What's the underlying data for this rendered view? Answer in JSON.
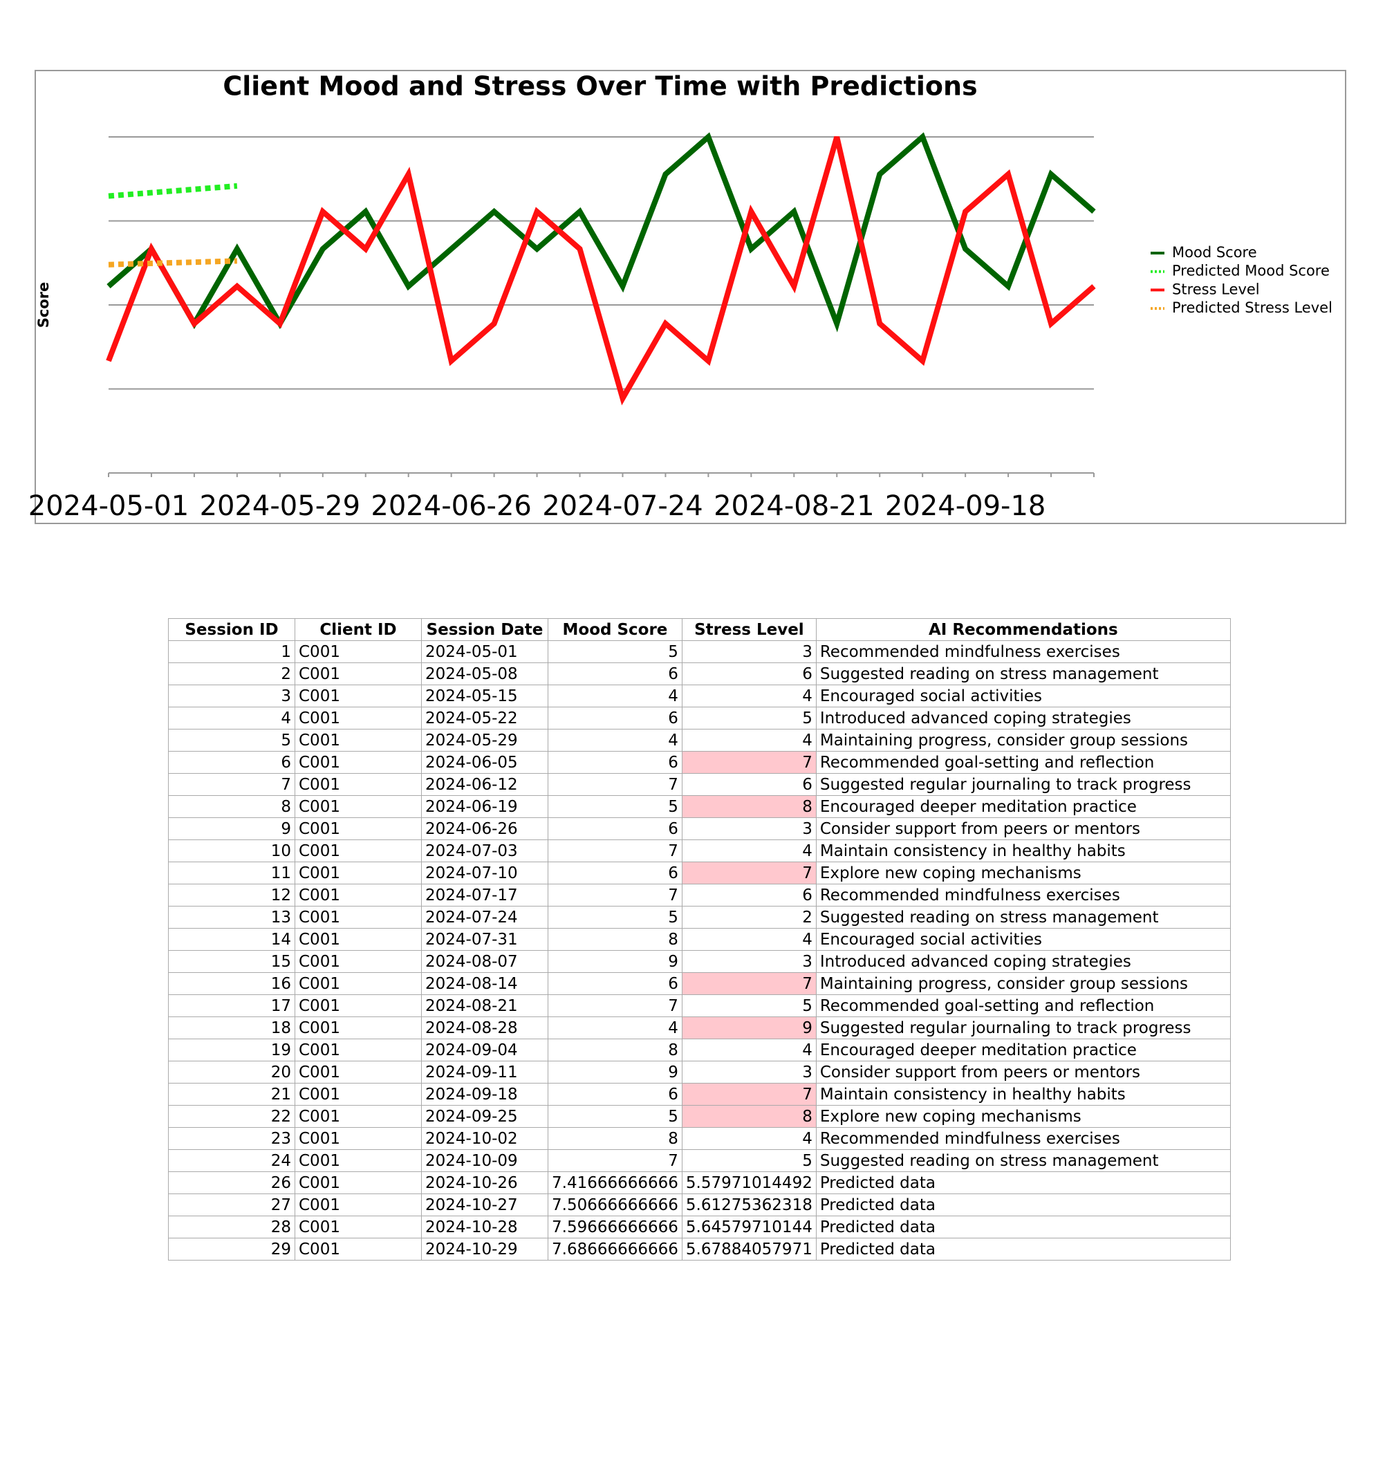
{
  "chart_data": {
    "type": "line",
    "title": "Client Mood and Stress Over Time with Predictions",
    "y_label": "Score",
    "categories": [
      "2024-05-01",
      null,
      null,
      null,
      "2024-05-29",
      null,
      null,
      null,
      "2024-06-26",
      null,
      null,
      null,
      "2024-07-24",
      null,
      null,
      null,
      "2024-08-21",
      null,
      null,
      null,
      "2024-09-18",
      null,
      null,
      null
    ],
    "ylim": [
      0,
      9
    ],
    "yticks": [
      0,
      2.25,
      4.5,
      6.75,
      9
    ],
    "grid": true,
    "legend": "right",
    "series": [
      {
        "name": "Mood Score",
        "color": "#006400",
        "dashed": false,
        "values": [
          5,
          6,
          4,
          6,
          4,
          6,
          7,
          5,
          6,
          7,
          6,
          7,
          5,
          8,
          9,
          6,
          7,
          4,
          8,
          9,
          6,
          5,
          8,
          7
        ]
      },
      {
        "name": "Predicted Mood Score",
        "color": "#22ee22",
        "dashed": true,
        "values": [
          7.4167,
          7.5067,
          7.5967,
          7.6867,
          null,
          null,
          null,
          null,
          null,
          null,
          null,
          null,
          null,
          null,
          null,
          null,
          null,
          null,
          null,
          null,
          null,
          null,
          null,
          null
        ]
      },
      {
        "name": "Stress Level",
        "color": "#ff1010",
        "dashed": false,
        "values": [
          3,
          6,
          4,
          5,
          4,
          7,
          6,
          8,
          3,
          4,
          7,
          6,
          2,
          4,
          3,
          7,
          5,
          9,
          4,
          3,
          7,
          8,
          4,
          5
        ]
      },
      {
        "name": "Predicted Stress Level",
        "color": "#f5a623",
        "dashed": true,
        "values": [
          5.5797,
          5.6128,
          5.6458,
          5.6788,
          null,
          null,
          null,
          null,
          null,
          null,
          null,
          null,
          null,
          null,
          null,
          null,
          null,
          null,
          null,
          null,
          null,
          null,
          null,
          null
        ]
      }
    ]
  },
  "table": {
    "columns": [
      "Session ID",
      "Client ID",
      "Session Date",
      "Mood Score",
      "Stress Level",
      "AI Recommendations"
    ],
    "highlight": {
      "column": 4,
      "min": 7,
      "color": "#ffc8ce"
    },
    "rows": [
      [
        "1",
        "C001",
        "2024-05-01",
        "5",
        "3",
        "Recommended mindfulness exercises"
      ],
      [
        "2",
        "C001",
        "2024-05-08",
        "6",
        "6",
        "Suggested reading on stress management"
      ],
      [
        "3",
        "C001",
        "2024-05-15",
        "4",
        "4",
        "Encouraged social activities"
      ],
      [
        "4",
        "C001",
        "2024-05-22",
        "6",
        "5",
        "Introduced advanced coping strategies"
      ],
      [
        "5",
        "C001",
        "2024-05-29",
        "4",
        "4",
        "Maintaining progress, consider group sessions"
      ],
      [
        "6",
        "C001",
        "2024-06-05",
        "6",
        "7",
        "Recommended goal-setting and reflection"
      ],
      [
        "7",
        "C001",
        "2024-06-12",
        "7",
        "6",
        "Suggested regular journaling to track progress"
      ],
      [
        "8",
        "C001",
        "2024-06-19",
        "5",
        "8",
        "Encouraged deeper meditation practice"
      ],
      [
        "9",
        "C001",
        "2024-06-26",
        "6",
        "3",
        "Consider support from peers or mentors"
      ],
      [
        "10",
        "C001",
        "2024-07-03",
        "7",
        "4",
        "Maintain consistency in healthy habits"
      ],
      [
        "11",
        "C001",
        "2024-07-10",
        "6",
        "7",
        "Explore new coping mechanisms"
      ],
      [
        "12",
        "C001",
        "2024-07-17",
        "7",
        "6",
        "Recommended mindfulness exercises"
      ],
      [
        "13",
        "C001",
        "2024-07-24",
        "5",
        "2",
        "Suggested reading on stress management"
      ],
      [
        "14",
        "C001",
        "2024-07-31",
        "8",
        "4",
        "Encouraged social activities"
      ],
      [
        "15",
        "C001",
        "2024-08-07",
        "9",
        "3",
        "Introduced advanced coping strategies"
      ],
      [
        "16",
        "C001",
        "2024-08-14",
        "6",
        "7",
        "Maintaining progress, consider group sessions"
      ],
      [
        "17",
        "C001",
        "2024-08-21",
        "7",
        "5",
        "Recommended goal-setting and reflection"
      ],
      [
        "18",
        "C001",
        "2024-08-28",
        "4",
        "9",
        "Suggested regular journaling to track progress"
      ],
      [
        "19",
        "C001",
        "2024-09-04",
        "8",
        "4",
        "Encouraged deeper meditation practice"
      ],
      [
        "20",
        "C001",
        "2024-09-11",
        "9",
        "3",
        "Consider support from peers or mentors"
      ],
      [
        "21",
        "C001",
        "2024-09-18",
        "6",
        "7",
        "Maintain consistency in healthy habits"
      ],
      [
        "22",
        "C001",
        "2024-09-25",
        "5",
        "8",
        "Explore new coping mechanisms"
      ],
      [
        "23",
        "C001",
        "2024-10-02",
        "8",
        "4",
        "Recommended mindfulness exercises"
      ],
      [
        "24",
        "C001",
        "2024-10-09",
        "7",
        "5",
        "Suggested reading on stress management"
      ],
      [
        "26",
        "C001",
        "2024-10-26",
        "7.41666666666",
        "5.57971014492",
        "Predicted data"
      ],
      [
        "27",
        "C001",
        "2024-10-27",
        "7.50666666666",
        "5.61275362318",
        "Predicted data"
      ],
      [
        "28",
        "C001",
        "2024-10-28",
        "7.59666666666",
        "5.64579710144",
        "Predicted data"
      ],
      [
        "29",
        "C001",
        "2024-10-29",
        "7.68666666666",
        "5.67884057971",
        "Predicted data"
      ]
    ]
  }
}
